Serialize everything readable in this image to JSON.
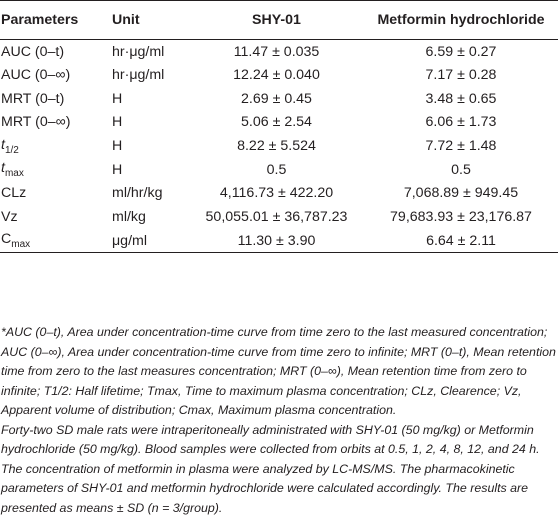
{
  "table": {
    "headers": [
      "Parameters",
      "Unit",
      "SHY-01",
      "Metformin hydrochloride"
    ],
    "rows": [
      {
        "param": "AUC (0–t)",
        "unit": "hr·μg/ml",
        "shy": "11.47 ± 0.035",
        "met": "6.59 ± 0.27"
      },
      {
        "param": "AUC (0–∞)",
        "unit": "hr·μg/ml",
        "shy": "12.24 ± 0.040",
        "met": "7.17 ± 0.28"
      },
      {
        "param": "MRT (0–t)",
        "unit": "H",
        "shy": "2.69 ± 0.45",
        "met": "3.48 ± 0.65"
      },
      {
        "param": "MRT (0–∞)",
        "unit": "H",
        "shy": "5.06 ± 2.54",
        "met": "6.06 ± 1.73"
      },
      {
        "param_main": "t",
        "param_sub": "1/2",
        "param_italic": true,
        "unit": "H",
        "shy": "8.22 ± 5.524",
        "met": "7.72 ± 1.48"
      },
      {
        "param_main": "t",
        "param_sub": "max",
        "param_italic": true,
        "unit": "H",
        "shy": "0.5",
        "met": "0.5"
      },
      {
        "param": "CLz",
        "unit": "ml/hr/kg",
        "shy": "4,116.73 ± 422.20",
        "met": "7,068.89 ± 949.45"
      },
      {
        "param": "Vz",
        "unit": "ml/kg",
        "shy": "50,055.01 ± 36,787.23",
        "met": "79,683.93 ± 23,176.87"
      },
      {
        "param_main": "C",
        "param_sub": "max",
        "param_italic": false,
        "unit": "μg/ml",
        "shy": "11.30 ± 3.90",
        "met": "6.64 ± 2.11"
      }
    ]
  },
  "notes": {
    "abbreviations": "*AUC (0–t), Area under concentration-time curve from time zero to the last measured concentration; AUC (0–∞), Area under concentration-time curve from time zero to infinite; MRT (0–t), Mean retention time from zero to the last measures concentration; MRT (0–∞), Mean retention time from zero to infinite; T1/2: Half lifetime; Tmax, Time to maximum plasma concentration; CLz, Clearence; Vz, Apparent volume of distribution; Cmax, Maximum plasma concentration.",
    "methods": "Forty-two SD male rats were intraperitoneally administrated with SHY-01 (50 mg/kg) or Metformin hydrochloride (50 mg/kg). Blood samples were collected from orbits at 0.5, 1, 2, 4, 8, 12, and 24 h. The concentration of metformin in plasma were analyzed by LC-MS/MS. The pharmacokinetic parameters of SHY-01 and metformin hydrochloride were calculated accordingly. The results are presented as means ± SD (n = 3/group)."
  }
}
